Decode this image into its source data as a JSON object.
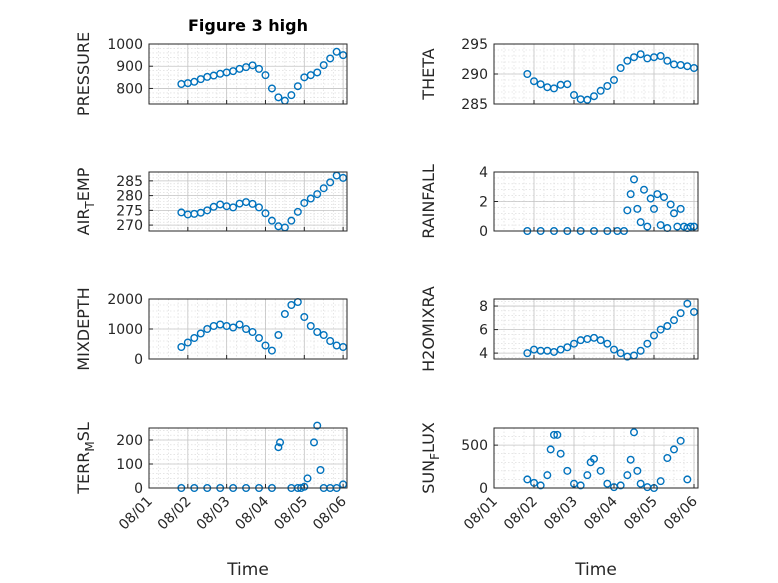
{
  "figure": {
    "title": "Figure 3 high",
    "marker_color": "#0072BD",
    "xaxis": {
      "label": "Time",
      "ticks": [
        "08/01",
        "08/02",
        "08/03",
        "08/04",
        "08/05",
        "08/06"
      ]
    }
  },
  "chart_data": [
    {
      "type": "scatter",
      "title": "Figure 3 high",
      "ylabel": "PRESSURE",
      "ylim": [
        730,
        1000
      ],
      "yticks": [
        800,
        900,
        1000
      ],
      "grid": true,
      "x": [
        "08/01 20:00",
        "08/02 00:00",
        "08/02 04:00",
        "08/02 08:00",
        "08/02 12:00",
        "08/02 16:00",
        "08/02 20:00",
        "08/03 00:00",
        "08/03 04:00",
        "08/03 08:00",
        "08/03 12:00",
        "08/03 16:00",
        "08/03 20:00",
        "08/04 00:00",
        "08/04 04:00",
        "08/04 08:00",
        "08/04 12:00",
        "08/04 16:00",
        "08/04 20:00",
        "08/05 00:00",
        "08/05 04:00",
        "08/05 08:00",
        "08/05 12:00",
        "08/05 16:00",
        "08/05 20:00",
        "08/06 00:00"
      ],
      "y": [
        820,
        824,
        830,
        842,
        852,
        858,
        866,
        872,
        878,
        888,
        896,
        904,
        888,
        860,
        800,
        760,
        745,
        770,
        810,
        850,
        860,
        872,
        905,
        935,
        965,
        950
      ]
    },
    {
      "type": "scatter",
      "ylabel": "THETA",
      "ylim": [
        285,
        295
      ],
      "yticks": [
        285,
        290,
        295
      ],
      "grid": true,
      "x": [
        "08/01 20:00",
        "08/02 00:00",
        "08/02 04:00",
        "08/02 08:00",
        "08/02 12:00",
        "08/02 16:00",
        "08/02 20:00",
        "08/03 00:00",
        "08/03 04:00",
        "08/03 08:00",
        "08/03 12:00",
        "08/03 16:00",
        "08/03 20:00",
        "08/04 00:00",
        "08/04 04:00",
        "08/04 08:00",
        "08/04 12:00",
        "08/04 16:00",
        "08/04 20:00",
        "08/05 00:00",
        "08/05 04:00",
        "08/05 08:00",
        "08/05 12:00",
        "08/05 16:00",
        "08/05 20:00",
        "08/06 00:00"
      ],
      "y": [
        290.0,
        288.8,
        288.3,
        287.8,
        287.6,
        288.2,
        288.3,
        286.5,
        285.8,
        285.7,
        286.3,
        287.2,
        288.0,
        289.0,
        291.0,
        292.2,
        292.8,
        293.3,
        292.6,
        292.8,
        293.0,
        292.2,
        291.6,
        291.5,
        291.3,
        291.0
      ]
    },
    {
      "type": "scatter",
      "ylabel": "AIR_TEMP",
      "ylim": [
        268,
        288
      ],
      "yticks": [
        270,
        275,
        280,
        285
      ],
      "grid": true,
      "x": [
        "08/01 20:00",
        "08/02 00:00",
        "08/02 04:00",
        "08/02 08:00",
        "08/02 12:00",
        "08/02 16:00",
        "08/02 20:00",
        "08/03 00:00",
        "08/03 04:00",
        "08/03 08:00",
        "08/03 12:00",
        "08/03 16:00",
        "08/03 20:00",
        "08/04 00:00",
        "08/04 04:00",
        "08/04 08:00",
        "08/04 12:00",
        "08/04 16:00",
        "08/04 20:00",
        "08/05 00:00",
        "08/05 04:00",
        "08/05 08:00",
        "08/05 12:00",
        "08/05 16:00",
        "08/05 20:00",
        "08/06 00:00"
      ],
      "y": [
        274.3,
        273.6,
        273.8,
        274.2,
        275.0,
        276.2,
        277.0,
        276.4,
        276.0,
        277.3,
        277.8,
        277.2,
        276.0,
        274.0,
        271.5,
        269.6,
        269.2,
        271.5,
        274.5,
        277.5,
        279.0,
        280.5,
        282.5,
        284.5,
        286.8,
        286.0
      ]
    },
    {
      "type": "scatter",
      "ylabel": "RAINFALL",
      "ylim": [
        0,
        4
      ],
      "yticks": [
        0,
        2,
        4
      ],
      "grid": true,
      "x": [
        "08/01 20:00",
        "08/02 04:00",
        "08/02 12:00",
        "08/02 20:00",
        "08/03 04:00",
        "08/03 12:00",
        "08/03 20:00",
        "08/04 02:00",
        "08/04 06:00",
        "08/04 08:00",
        "08/04 10:00",
        "08/04 12:00",
        "08/04 14:00",
        "08/04 16:00",
        "08/04 18:00",
        "08/04 20:00",
        "08/04 22:00",
        "08/05 00:00",
        "08/05 02:00",
        "08/05 04:00",
        "08/05 06:00",
        "08/05 08:00",
        "08/05 10:00",
        "08/05 12:00",
        "08/05 14:00",
        "08/05 16:00",
        "08/05 18:00",
        "08/05 20:00",
        "08/05 22:00",
        "08/06 00:00"
      ],
      "y": [
        0,
        0,
        0,
        0,
        0,
        0,
        0,
        0,
        0,
        1.4,
        2.5,
        3.5,
        1.5,
        0.6,
        2.8,
        0.3,
        2.2,
        1.5,
        2.5,
        0.4,
        2.3,
        0.2,
        1.8,
        1.2,
        0.3,
        1.5,
        0.3,
        0.2,
        0.3,
        0.3
      ]
    },
    {
      "type": "scatter",
      "ylabel": "MIXDEPTH",
      "ylim": [
        0,
        2000
      ],
      "yticks": [
        0,
        1000,
        2000
      ],
      "grid": true,
      "x": [
        "08/01 20:00",
        "08/02 00:00",
        "08/02 04:00",
        "08/02 08:00",
        "08/02 12:00",
        "08/02 16:00",
        "08/02 20:00",
        "08/03 00:00",
        "08/03 04:00",
        "08/03 08:00",
        "08/03 12:00",
        "08/03 16:00",
        "08/03 20:00",
        "08/04 00:00",
        "08/04 04:00",
        "08/04 08:00",
        "08/04 12:00",
        "08/04 16:00",
        "08/04 20:00",
        "08/05 00:00",
        "08/05 04:00",
        "08/05 08:00",
        "08/05 12:00",
        "08/05 16:00",
        "08/05 20:00",
        "08/06 00:00"
      ],
      "y": [
        400,
        550,
        700,
        850,
        1000,
        1100,
        1150,
        1100,
        1050,
        1150,
        1000,
        900,
        700,
        450,
        280,
        800,
        1500,
        1800,
        1900,
        1400,
        1100,
        900,
        800,
        600,
        450,
        400
      ]
    },
    {
      "type": "scatter",
      "ylabel": "H2OMIXRA",
      "ylim": [
        3.5,
        8.6
      ],
      "yticks": [
        4,
        6,
        8
      ],
      "grid": true,
      "x": [
        "08/01 20:00",
        "08/02 00:00",
        "08/02 04:00",
        "08/02 08:00",
        "08/02 12:00",
        "08/02 16:00",
        "08/02 20:00",
        "08/03 00:00",
        "08/03 04:00",
        "08/03 08:00",
        "08/03 12:00",
        "08/03 16:00",
        "08/03 20:00",
        "08/04 00:00",
        "08/04 04:00",
        "08/04 08:00",
        "08/04 12:00",
        "08/04 16:00",
        "08/04 20:00",
        "08/05 00:00",
        "08/05 04:00",
        "08/05 08:00",
        "08/05 12:00",
        "08/05 16:00",
        "08/05 20:00",
        "08/06 00:00"
      ],
      "y": [
        4.0,
        4.3,
        4.2,
        4.2,
        4.1,
        4.3,
        4.5,
        4.8,
        5.1,
        5.2,
        5.3,
        5.1,
        4.8,
        4.3,
        4.0,
        3.7,
        3.8,
        4.2,
        4.8,
        5.5,
        6.0,
        6.3,
        6.8,
        7.4,
        8.2,
        7.5
      ]
    },
    {
      "type": "scatter",
      "ylabel": "TERR_MSL",
      "ylim": [
        0,
        250
      ],
      "yticks": [
        0,
        100,
        200
      ],
      "grid": true,
      "x": [
        "08/01 20:00",
        "08/02 04:00",
        "08/02 12:00",
        "08/02 20:00",
        "08/03 04:00",
        "08/03 12:00",
        "08/03 20:00",
        "08/04 04:00",
        "08/04 08:00",
        "08/04 09:00",
        "08/04 16:00",
        "08/04 20:00",
        "08/04 22:00",
        "08/05 00:00",
        "08/05 02:00",
        "08/05 06:00",
        "08/05 08:00",
        "08/05 10:00",
        "08/05 12:00",
        "08/05 16:00",
        "08/05 20:00",
        "08/06 00:00"
      ],
      "y": [
        0,
        0,
        0,
        0,
        0,
        0,
        0,
        0,
        170,
        190,
        0,
        0,
        0,
        5,
        40,
        190,
        260,
        75,
        0,
        0,
        0,
        15
      ]
    },
    {
      "type": "scatter",
      "ylabel": "SUN_FLUX",
      "ylim": [
        0,
        700
      ],
      "yticks": [
        0,
        500
      ],
      "grid": true,
      "x": [
        "08/01 20:00",
        "08/02 00:00",
        "08/02 04:00",
        "08/02 08:00",
        "08/02 10:00",
        "08/02 12:00",
        "08/02 14:00",
        "08/02 16:00",
        "08/02 20:00",
        "08/03 00:00",
        "08/03 04:00",
        "08/03 08:00",
        "08/03 10:00",
        "08/03 12:00",
        "08/03 16:00",
        "08/03 20:00",
        "08/04 00:00",
        "08/04 04:00",
        "08/04 08:00",
        "08/04 10:00",
        "08/04 12:00",
        "08/04 14:00",
        "08/04 16:00",
        "08/04 20:00",
        "08/05 00:00",
        "08/05 04:00",
        "08/05 08:00",
        "08/05 12:00",
        "08/05 16:00",
        "08/05 20:00"
      ],
      "y": [
        100,
        60,
        30,
        150,
        450,
        620,
        620,
        400,
        200,
        50,
        30,
        150,
        300,
        340,
        200,
        50,
        10,
        30,
        150,
        330,
        650,
        200,
        50,
        10,
        0,
        80,
        350,
        450,
        550,
        100
      ]
    }
  ]
}
